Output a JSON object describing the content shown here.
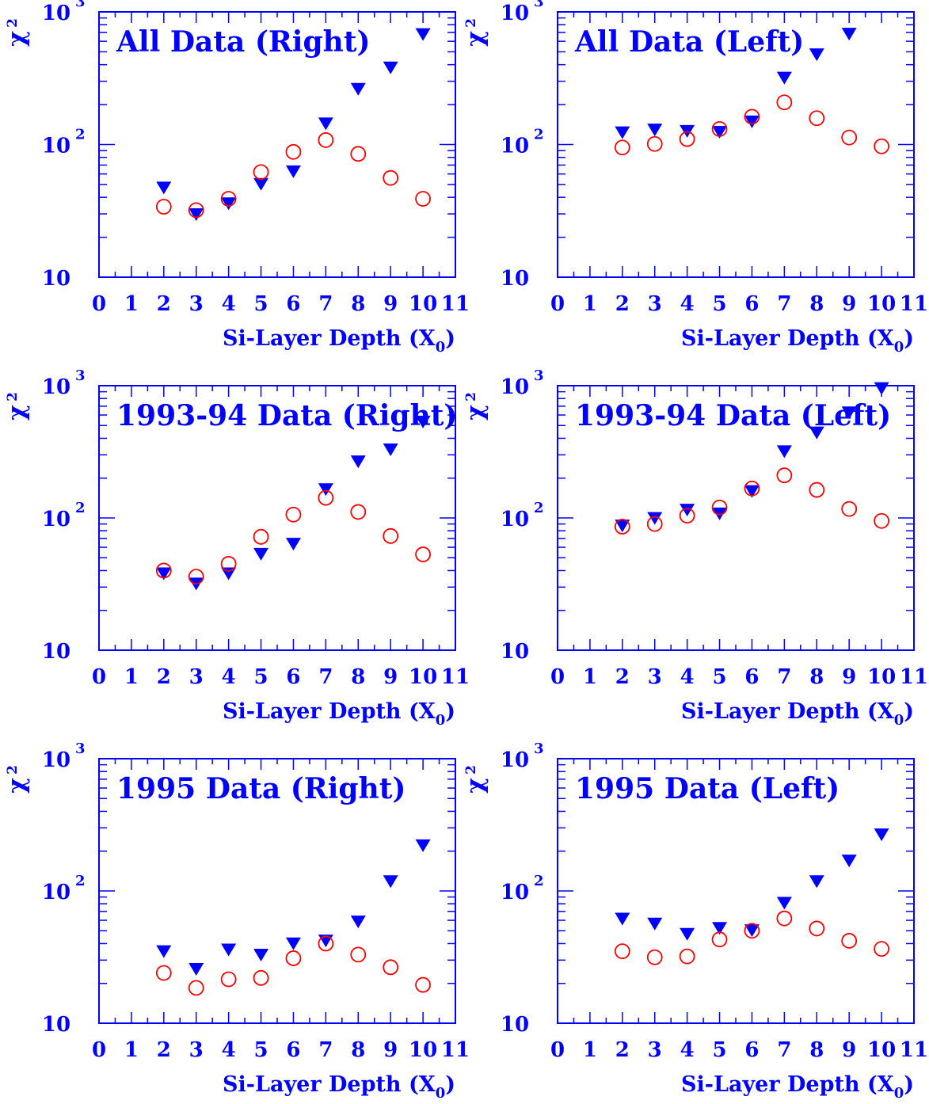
{
  "colors": {
    "axis": "#0000ff",
    "triangle_series": "#0000ff",
    "circle_series": "#ff0000"
  },
  "shared": {
    "ylabel": "χ",
    "ylabel_sup": "2",
    "xlabel_text": "Si-Layer Depth (X",
    "xlabel_sub": "0",
    "xlabel_close": ")",
    "y_tick_base": "10",
    "y_tick_exps": [
      "",
      "2",
      "3"
    ]
  },
  "chart_data": [
    {
      "type": "scatter",
      "title": "All Data (Right)",
      "xlim": [
        0,
        11
      ],
      "ylim": [
        10,
        1000
      ],
      "yscale": "log",
      "x_ticks": [
        "0",
        "1",
        "2",
        "3",
        "4",
        "5",
        "6",
        "7",
        "8",
        "9",
        "10",
        "11"
      ],
      "xlabel": "Si-Layer Depth (X0)",
      "ylabel": "χ2",
      "series": [
        {
          "marker": "filled-triangle-down",
          "color": "#0000ff",
          "x": [
            2,
            3,
            4,
            5,
            6,
            7,
            8,
            9,
            10
          ],
          "values": [
            46,
            29,
            35,
            49,
            61,
            140,
            255,
            370,
            660
          ]
        },
        {
          "marker": "open-circle",
          "color": "#ff0000",
          "x": [
            2,
            3,
            4,
            5,
            6,
            7,
            8,
            9,
            10
          ],
          "values": [
            34,
            32,
            39,
            62,
            88,
            108,
            85,
            56,
            39
          ]
        }
      ]
    },
    {
      "type": "scatter",
      "title": "All Data (Left)",
      "xlim": [
        0,
        11
      ],
      "ylim": [
        10,
        1000
      ],
      "yscale": "log",
      "x_ticks": [
        "0",
        "1",
        "2",
        "3",
        "4",
        "5",
        "6",
        "7",
        "8",
        "9",
        "10",
        "11"
      ],
      "xlabel": "Si-Layer Depth (X0)",
      "ylabel": "χ2",
      "series": [
        {
          "marker": "filled-triangle-down",
          "color": "#0000ff",
          "x": [
            2,
            3,
            4,
            5,
            6,
            7,
            8,
            9,
            10
          ],
          "values": [
            120,
            126,
            123,
            121,
            145,
            310,
            465,
            665,
            null
          ]
        },
        {
          "marker": "open-circle",
          "color": "#ff0000",
          "x": [
            2,
            3,
            4,
            5,
            6,
            7,
            8,
            9,
            10
          ],
          "values": [
            95,
            101,
            110,
            131,
            162,
            208,
            158,
            113,
            97
          ]
        }
      ]
    },
    {
      "type": "scatter",
      "title": "1993-94 Data (Right)",
      "xlim": [
        0,
        11
      ],
      "ylim": [
        10,
        1000
      ],
      "yscale": "log",
      "x_ticks": [
        "0",
        "1",
        "2",
        "3",
        "4",
        "5",
        "6",
        "7",
        "8",
        "9",
        "10",
        "11"
      ],
      "xlabel": "Si-Layer Depth (X0)",
      "ylabel": "χ2",
      "series": [
        {
          "marker": "filled-triangle-down",
          "color": "#0000ff",
          "x": [
            2,
            3,
            4,
            5,
            6,
            7,
            8,
            9,
            10
          ],
          "values": [
            37,
            31,
            37,
            52,
            62,
            160,
            260,
            320,
            520
          ]
        },
        {
          "marker": "open-circle",
          "color": "#ff0000",
          "x": [
            2,
            3,
            4,
            5,
            6,
            7,
            8,
            9,
            10
          ],
          "values": [
            40,
            36,
            45,
            72,
            106,
            142,
            111,
            73,
            53
          ]
        }
      ]
    },
    {
      "type": "scatter",
      "title": "1993-94 Data (Left)",
      "xlim": [
        0,
        11
      ],
      "ylim": [
        10,
        1000
      ],
      "yscale": "log",
      "x_ticks": [
        "0",
        "1",
        "2",
        "3",
        "4",
        "5",
        "6",
        "7",
        "8",
        "9",
        "10",
        "11"
      ],
      "xlabel": "Si-Layer Depth (X0)",
      "ylabel": "χ2",
      "series": [
        {
          "marker": "filled-triangle-down",
          "color": "#0000ff",
          "x": [
            2,
            3,
            4,
            5,
            6,
            7,
            8,
            9,
            10
          ],
          "values": [
            85,
            97,
            112,
            105,
            155,
            310,
            430,
            610,
            930
          ]
        },
        {
          "marker": "open-circle",
          "color": "#ff0000",
          "x": [
            2,
            3,
            4,
            5,
            6,
            7,
            8,
            9,
            10
          ],
          "values": [
            86,
            90,
            104,
            120,
            167,
            210,
            163,
            117,
            95
          ]
        }
      ]
    },
    {
      "type": "scatter",
      "title": "1995 Data (Right)",
      "xlim": [
        0,
        11
      ],
      "ylim": [
        10,
        1000
      ],
      "yscale": "log",
      "x_ticks": [
        "0",
        "1",
        "2",
        "3",
        "4",
        "5",
        "6",
        "7",
        "8",
        "9",
        "10",
        "11"
      ],
      "xlabel": "Si-Layer Depth (X0)",
      "ylabel": "χ2",
      "series": [
        {
          "marker": "filled-triangle-down",
          "color": "#0000ff",
          "x": [
            2,
            3,
            4,
            5,
            6,
            7,
            8,
            9,
            10
          ],
          "values": [
            34,
            25,
            35,
            32,
            39,
            41,
            57,
            115,
            215
          ]
        },
        {
          "marker": "open-circle",
          "color": "#ff0000",
          "x": [
            2,
            3,
            4,
            5,
            6,
            7,
            8,
            9,
            10
          ],
          "values": [
            24,
            18.5,
            21.5,
            22,
            31,
            40,
            33,
            26.5,
            19.5
          ]
        }
      ]
    },
    {
      "type": "scatter",
      "title": "1995 Data (Left)",
      "xlim": [
        0,
        11
      ],
      "ylim": [
        10,
        1000
      ],
      "yscale": "log",
      "x_ticks": [
        "0",
        "1",
        "2",
        "3",
        "4",
        "5",
        "6",
        "7",
        "8",
        "9",
        "10",
        "11"
      ],
      "xlabel": "Si-Layer Depth (X0)",
      "ylabel": "χ2",
      "series": [
        {
          "marker": "filled-triangle-down",
          "color": "#0000ff",
          "x": [
            2,
            3,
            4,
            5,
            6,
            7,
            8,
            9,
            10
          ],
          "values": [
            60,
            55,
            46,
            51,
            49,
            79,
            115,
            165,
            260
          ]
        },
        {
          "marker": "open-circle",
          "color": "#ff0000",
          "x": [
            2,
            3,
            4,
            5,
            6,
            7,
            8,
            9,
            10
          ],
          "values": [
            35,
            31.5,
            32,
            43,
            50,
            62,
            52,
            42,
            36.5
          ]
        }
      ]
    }
  ]
}
